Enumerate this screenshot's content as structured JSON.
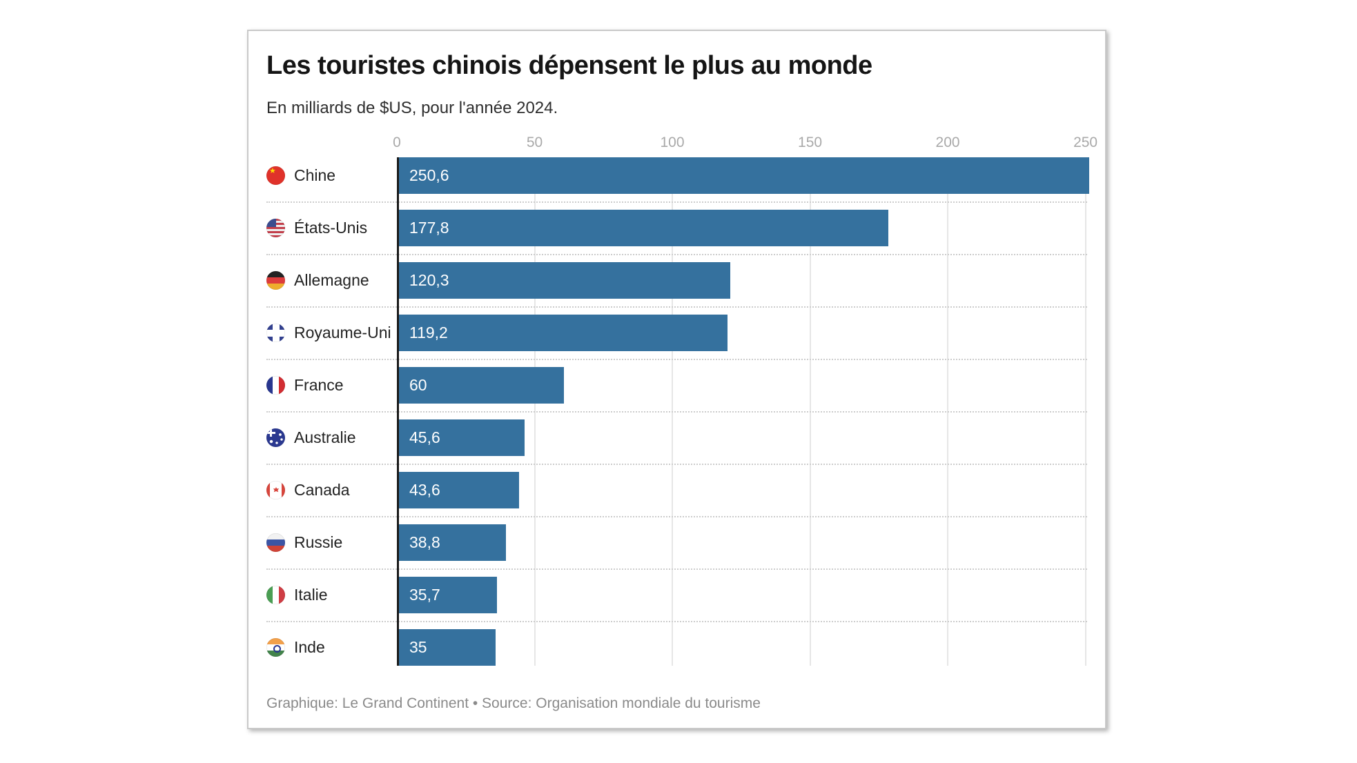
{
  "header": {
    "title": "Les touristes chinois dépensent le plus au monde",
    "subtitle": "En milliards de $US, pour l'année 2024."
  },
  "footer": {
    "text": "Graphique: Le Grand Continent • Source: Organisation mondiale du tourisme"
  },
  "chart_data": {
    "type": "bar",
    "orientation": "horizontal",
    "title": "Les touristes chinois dépensent le plus au monde",
    "subtitle": "En milliards de $US, pour l'année 2024.",
    "xlabel": "",
    "ylabel": "",
    "unit": "milliards de $US",
    "categories": [
      "Chine",
      "États-Unis",
      "Allemagne",
      "Royaume-Uni",
      "France",
      "Australie",
      "Canada",
      "Russie",
      "Italie",
      "Inde"
    ],
    "values": [
      250.6,
      177.8,
      120.3,
      119.2,
      60,
      45.6,
      43.6,
      38.8,
      35.7,
      35
    ],
    "value_labels": [
      "250,6",
      "177,8",
      "120,3",
      "119,2",
      "60",
      "45,6",
      "43,6",
      "38,8",
      "35,7",
      "35"
    ],
    "flags": [
      "cn",
      "us",
      "de",
      "gb",
      "fr",
      "au",
      "ca",
      "ru",
      "it",
      "in"
    ],
    "x_ticks": [
      0,
      50,
      100,
      150,
      200,
      250
    ],
    "xlim": [
      0,
      250.6
    ],
    "grid": true,
    "legend": "none",
    "bar_color": "#35719E"
  },
  "colors": {
    "bar": "#35719E",
    "axis_line": "#1a1a1a",
    "tick_label": "#a9a9a9",
    "gridline": "#e6e6e6",
    "row_separator": "#cccccc",
    "footer_text": "#8a8a8a",
    "card_border": "#c9c9c9"
  }
}
